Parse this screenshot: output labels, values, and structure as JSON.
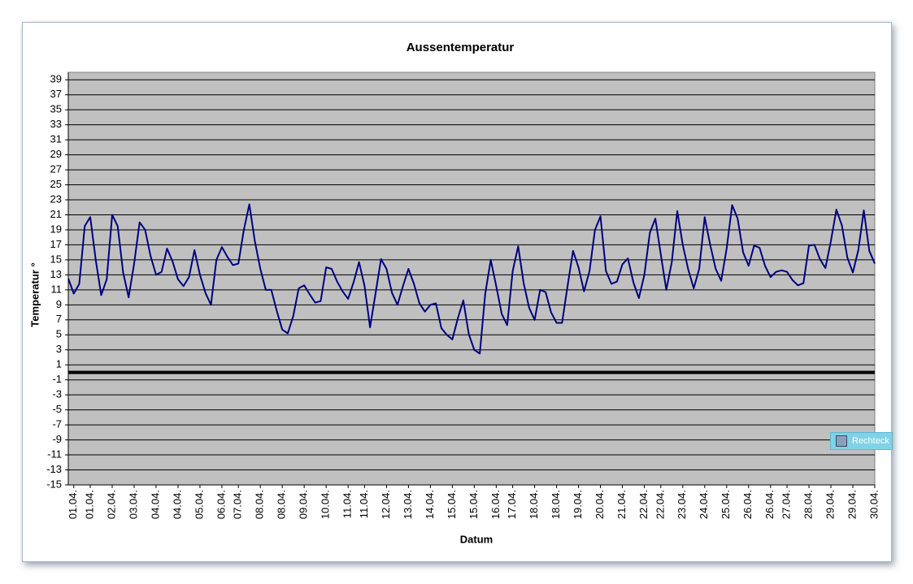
{
  "chart_data": {
    "type": "line",
    "title": "Aussentemperatur",
    "x_label": "Datum",
    "y_label": "Temperatur °",
    "categories": [
      null,
      "01.04.",
      null,
      null,
      "01.04.",
      null,
      null,
      null,
      "02.04.",
      null,
      null,
      null,
      "03.04.",
      null,
      null,
      null,
      "04.04.",
      null,
      null,
      null,
      "04.04.",
      null,
      null,
      null,
      "05.04.",
      null,
      null,
      null,
      "06.04.",
      null,
      null,
      "07.04.",
      null,
      null,
      null,
      "08.04.",
      null,
      null,
      null,
      "08.04.",
      null,
      null,
      null,
      "09.04.",
      null,
      null,
      null,
      "10.04.",
      null,
      null,
      null,
      "11.04.",
      null,
      null,
      "11.04.",
      null,
      null,
      null,
      "12.04.",
      null,
      null,
      null,
      "13.04.",
      null,
      null,
      null,
      "14.04.",
      null,
      null,
      null,
      "15.04.",
      null,
      null,
      null,
      "15.04.",
      null,
      null,
      null,
      "16.04.",
      null,
      null,
      "17.04.",
      null,
      null,
      null,
      "18.04.",
      null,
      null,
      null,
      "18.04.",
      null,
      null,
      null,
      "19.04.",
      null,
      null,
      null,
      "20.04.",
      null,
      null,
      null,
      "21.04.",
      null,
      null,
      null,
      "22.04.",
      null,
      null,
      "22.04.",
      null,
      null,
      null,
      "23.04.",
      null,
      null,
      null,
      "24.04.",
      null,
      null,
      null,
      "25.04.",
      null,
      null,
      null,
      "26.04.",
      null,
      null,
      null,
      "26.04.",
      null,
      null,
      "27.04.",
      null,
      null,
      null,
      "28.04.",
      null,
      null,
      null,
      "29.04.",
      null,
      null,
      null,
      "29.04.",
      null,
      null,
      null,
      "30.04."
    ],
    "values": [
      12.5,
      10.5,
      11.8,
      19.5,
      20.7,
      15,
      10.3,
      12.4,
      21,
      19.5,
      13.3,
      10,
      14.5,
      20,
      19,
      15.5,
      13,
      13.4,
      16.5,
      14.8,
      12.4,
      11.5,
      12.7,
      16.3,
      13,
      10.6,
      9,
      15,
      16.7,
      15.4,
      14.3,
      14.5,
      19,
      22.4,
      17.5,
      13.8,
      11,
      11,
      8.2,
      5.7,
      5.2,
      7.5,
      11.2,
      11.6,
      10.4,
      9.3,
      9.5,
      14,
      13.8,
      12.1,
      10.8,
      9.8,
      12,
      14.7,
      11.5,
      6,
      10.5,
      15.1,
      13.8,
      10.6,
      9,
      11.5,
      13.8,
      11.8,
      9.2,
      8.1,
      9,
      9.2,
      5.9,
      5,
      4.4,
      7.2,
      9.6,
      5.1,
      3,
      2.5,
      10.5,
      15,
      11.5,
      7.8,
      6.3,
      13.5,
      16.8,
      11.9,
      8.6,
      7,
      11,
      10.7,
      8,
      6.6,
      6.6,
      11.5,
      16.2,
      14,
      10.8,
      13.5,
      19,
      20.8,
      13.5,
      11.8,
      12.1,
      14.4,
      15.2,
      12,
      9.9,
      13,
      18.6,
      20.5,
      15.7,
      11,
      14.7,
      21.5,
      17,
      13.7,
      11.2,
      13.8,
      20.7,
      17,
      13.8,
      12.2,
      16.5,
      22.3,
      20.5,
      16,
      14.2,
      16.9,
      16.6,
      14.2,
      12.7,
      13.4,
      13.6,
      13.4,
      12.3,
      11.6,
      11.9,
      16.9,
      17,
      15.1,
      13.9,
      17.5,
      21.7,
      19.6,
      15.3,
      13.3,
      16.3,
      21.6,
      16.2,
      14.5
    ],
    "color": "#000080",
    "plot_background": "#c0c0c0",
    "grid": true,
    "ylim": [
      -15,
      40
    ],
    "yticks": [
      -15,
      -13,
      -11,
      -9,
      -7,
      -5,
      -3,
      -1,
      1,
      3,
      5,
      7,
      9,
      11,
      13,
      15,
      17,
      19,
      21,
      23,
      25,
      27,
      29,
      31,
      33,
      35,
      37,
      39
    ]
  },
  "overlay_label": "Rechteck"
}
